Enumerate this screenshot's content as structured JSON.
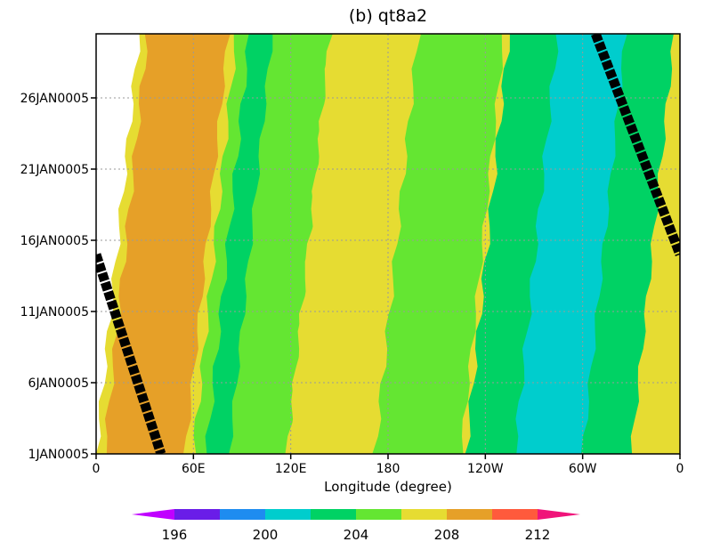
{
  "chart_data": {
    "type": "heatmap",
    "title": "(b) qt8a2",
    "xlabel": "Longitude (degree)",
    "ylabel": "",
    "x_ticks": [
      "0",
      "60E",
      "120E",
      "180",
      "120W",
      "60W",
      "0"
    ],
    "x_range": [
      0,
      360
    ],
    "y_ticks": [
      "1JAN0005",
      "6JAN0005",
      "11JAN0005",
      "16JAN0005",
      "21JAN0005",
      "26JAN0005"
    ],
    "y_range": [
      1,
      30.5
    ],
    "grid": true,
    "colorbar": {
      "labels": [
        "196",
        "200",
        "204",
        "208",
        "212"
      ],
      "levels": [
        194,
        196,
        198,
        200,
        202,
        204,
        206,
        208,
        210,
        212,
        214
      ],
      "colors": [
        "#c000ff",
        "#6a1de8",
        "#1e8cf0",
        "#00cdcd",
        "#00d264",
        "#64e632",
        "#e6dc32",
        "#e6a028",
        "#ff5a3c",
        "#f0147a"
      ]
    },
    "bands": [
      {
        "value_range": [
          206,
          208
        ],
        "color": "#e6dc32",
        "lon_at_start": [
          0,
          360
        ]
      },
      {
        "value_range": [
          208,
          210
        ],
        "color": "#e6a028",
        "lon_at_start": [
          5,
          55
        ]
      },
      {
        "value_range": [
          204,
          206
        ],
        "color": "#64e632",
        "lon_at_start": [
          60,
          118
        ]
      },
      {
        "value_range": [
          202,
          204
        ],
        "color": "#00d264",
        "lon_at_start": [
          68,
          82
        ]
      },
      {
        "value_range": [
          206,
          208
        ],
        "color": "#e6dc32",
        "lon_at_start": [
          118,
          172
        ]
      },
      {
        "value_range": [
          204,
          206
        ],
        "color": "#64e632",
        "lon_at_start": [
          172,
          225
        ]
      },
      {
        "value_range": [
          202,
          204
        ],
        "color": "#00d264",
        "lon_at_start": [
          228,
          330
        ]
      },
      {
        "value_range": [
          200,
          202
        ],
        "color": "#00cdcd",
        "lon_at_start": [
          258,
          300
        ]
      }
    ],
    "overlay": [
      {
        "name": "",
        "points": [
          [
            0,
            15.0
          ],
          [
            40,
            1.0
          ]
        ]
      },
      {
        "name": "",
        "points": [
          [
            308,
            30.5
          ],
          [
            360,
            15.0
          ]
        ]
      }
    ]
  }
}
